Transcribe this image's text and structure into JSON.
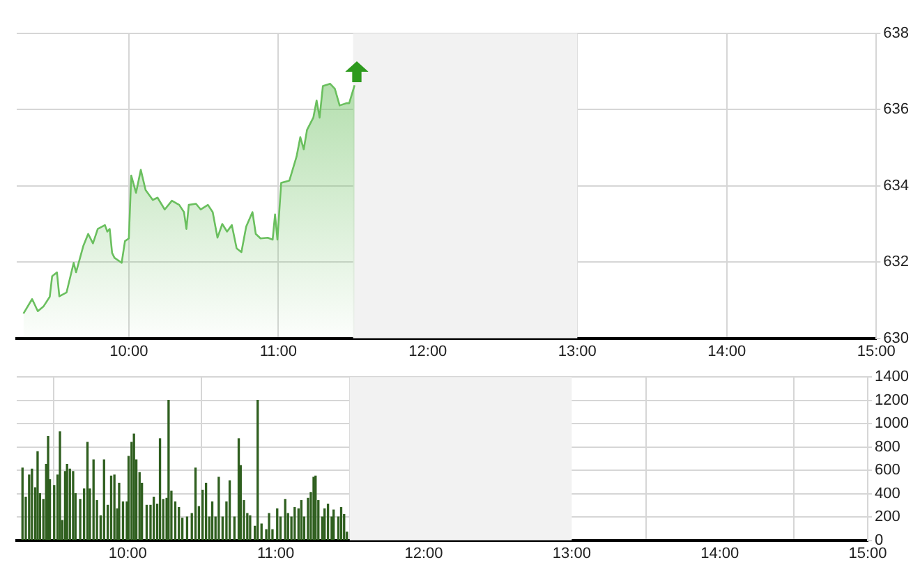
{
  "chart_data": [
    {
      "type": "area",
      "xlim": [
        9.25,
        15
      ],
      "xticks": [
        {
          "value": 10,
          "label": "10:00"
        },
        {
          "value": 11,
          "label": "11:00"
        },
        {
          "value": 12,
          "label": "12:00"
        },
        {
          "value": 13,
          "label": "13:00"
        },
        {
          "value": 14,
          "label": "14:00"
        },
        {
          "value": 15,
          "label": "15:00"
        }
      ],
      "ylim": [
        630,
        638
      ],
      "yticks": [
        630,
        632,
        634,
        636,
        638
      ],
      "grid": true,
      "legend": false,
      "marker": "none",
      "bands": [
        {
          "axis": "x",
          "from": 11.5,
          "to": 13,
          "color": "#f2f2f2"
        }
      ],
      "series": [
        {
          "color": "#6abf5e",
          "x": [
            9.295,
            9.353,
            9.391,
            9.43,
            9.471,
            9.487,
            9.519,
            9.535,
            9.583,
            9.631,
            9.647,
            9.696,
            9.728,
            9.76,
            9.792,
            9.84,
            9.856,
            9.872,
            9.888,
            9.904,
            9.952,
            9.974,
            10.0,
            10.016,
            10.048,
            10.08,
            10.112,
            10.16,
            10.192,
            10.24,
            10.288,
            10.337,
            10.369,
            10.385,
            10.401,
            10.449,
            10.481,
            10.529,
            10.561,
            10.593,
            10.625,
            10.657,
            10.689,
            10.721,
            10.753,
            10.785,
            10.827,
            10.849,
            10.881,
            10.929,
            10.962,
            10.978,
            10.994,
            11.019,
            11.074,
            11.122,
            11.147,
            11.17,
            11.192,
            11.234,
            11.256,
            11.276,
            11.298,
            11.346,
            11.378,
            11.41,
            11.458,
            11.474,
            11.51
          ],
          "values": [
            630.65,
            631.03,
            630.71,
            630.84,
            631.09,
            631.63,
            631.73,
            631.1,
            631.2,
            631.98,
            631.73,
            632.43,
            632.74,
            632.49,
            632.87,
            632.97,
            632.8,
            632.87,
            632.24,
            632.11,
            631.98,
            632.55,
            632.62,
            634.27,
            633.82,
            634.42,
            633.89,
            633.63,
            633.69,
            633.38,
            633.61,
            633.5,
            633.31,
            632.87,
            633.5,
            633.53,
            633.38,
            633.5,
            633.31,
            632.64,
            633.0,
            632.8,
            632.97,
            632.36,
            632.26,
            632.93,
            633.31,
            632.74,
            632.62,
            632.64,
            632.59,
            633.25,
            632.59,
            634.08,
            634.14,
            634.77,
            635.28,
            634.96,
            635.47,
            635.79,
            636.24,
            635.79,
            636.62,
            636.68,
            636.55,
            636.11,
            636.17,
            636.17,
            636.64
          ]
        }
      ]
    },
    {
      "type": "bar",
      "xlim": [
        9.25,
        15
      ],
      "xticks": [
        {
          "value": 10,
          "label": "10:00"
        },
        {
          "value": 11,
          "label": "11:00"
        },
        {
          "value": 12,
          "label": "12:00"
        },
        {
          "value": 13,
          "label": "13:00"
        },
        {
          "value": 14,
          "label": "14:00"
        },
        {
          "value": 15,
          "label": "15:00"
        }
      ],
      "ylim": [
        0,
        1400
      ],
      "yticks": [
        0,
        200,
        400,
        600,
        800,
        1000,
        1200,
        1400
      ],
      "grid": true,
      "legend": false,
      "bands": [
        {
          "axis": "x",
          "from": 11.5,
          "to": 13,
          "color": "#f2f2f2"
        }
      ],
      "series": [
        {
          "color": "#2f5f1f",
          "x": [
            9.289,
            9.311,
            9.334,
            9.353,
            9.375,
            9.391,
            9.407,
            9.43,
            9.449,
            9.462,
            9.474,
            9.503,
            9.526,
            9.542,
            9.558,
            9.577,
            9.59,
            9.609,
            9.631,
            9.647,
            9.679,
            9.705,
            9.728,
            9.744,
            9.769,
            9.792,
            9.817,
            9.84,
            9.865,
            9.888,
            9.91,
            9.929,
            9.942,
            9.968,
            9.994,
            10.006,
            10.026,
            10.042,
            10.058,
            10.08,
            10.096,
            10.128,
            10.154,
            10.176,
            10.199,
            10.218,
            10.24,
            10.263,
            10.276,
            10.295,
            10.321,
            10.346,
            10.369,
            10.401,
            10.433,
            10.458,
            10.481,
            10.506,
            10.529,
            10.551,
            10.571,
            10.593,
            10.615,
            10.641,
            10.667,
            10.689,
            10.721,
            10.75,
            10.763,
            10.785,
            10.808,
            10.827,
            10.859,
            10.878,
            10.904,
            10.936,
            10.955,
            10.978,
            11.01,
            11.032,
            11.064,
            11.083,
            11.106,
            11.128,
            11.154,
            11.173,
            11.192,
            11.218,
            11.237,
            11.256,
            11.269,
            11.288,
            11.314,
            11.33,
            11.353,
            11.378,
            11.391,
            11.423,
            11.442,
            11.462,
            11.481
          ],
          "values": [
            620,
            370,
            560,
            610,
            450,
            760,
            400,
            350,
            650,
            890,
            520,
            470,
            560,
            930,
            170,
            590,
            650,
            610,
            590,
            400,
            350,
            440,
            840,
            440,
            690,
            340,
            210,
            690,
            300,
            550,
            560,
            270,
            490,
            330,
            330,
            720,
            840,
            910,
            690,
            580,
            490,
            300,
            300,
            370,
            310,
            870,
            350,
            360,
            1200,
            420,
            330,
            280,
            190,
            200,
            230,
            620,
            290,
            430,
            490,
            200,
            330,
            200,
            540,
            200,
            330,
            510,
            200,
            870,
            640,
            340,
            230,
            210,
            120,
            1200,
            140,
            90,
            230,
            90,
            270,
            200,
            350,
            230,
            200,
            280,
            270,
            340,
            200,
            360,
            410,
            540,
            550,
            340,
            200,
            270,
            310,
            200,
            260,
            200,
            280,
            220,
            70
          ]
        }
      ]
    }
  ]
}
